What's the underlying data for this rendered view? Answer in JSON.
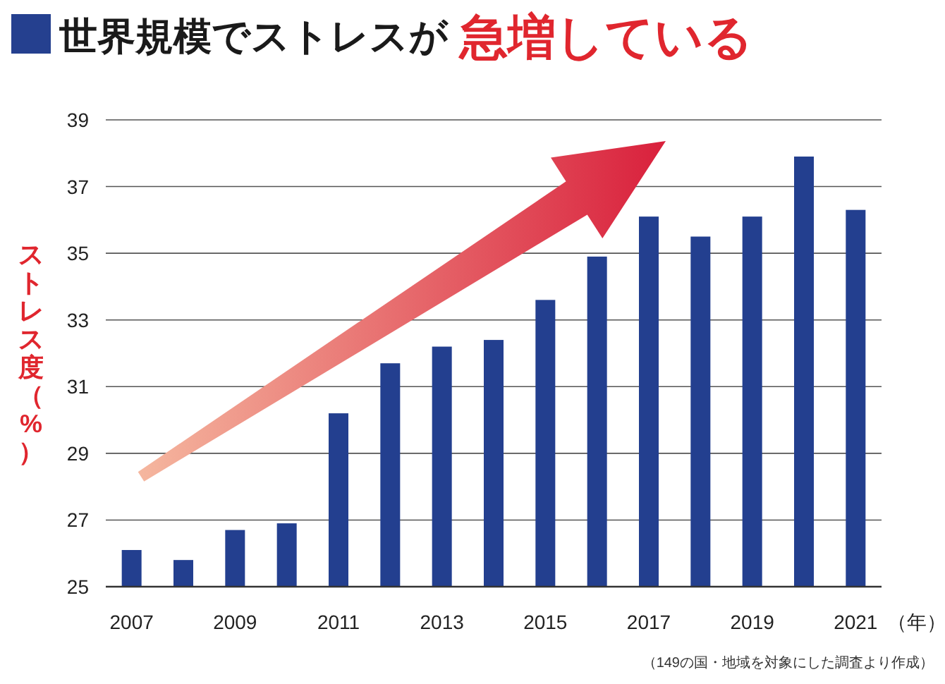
{
  "chart_data": {
    "type": "bar",
    "title": "世界規模でストレスが",
    "subtitle": "急増している",
    "ylabel": "ストレス度（%）",
    "xlabel": "（年）",
    "categories": [
      "2007",
      null,
      "2009",
      null,
      "2011",
      null,
      "2013",
      null,
      "2015",
      null,
      "2017",
      null,
      "2019",
      null,
      "2021"
    ],
    "values": [
      26.1,
      25.8,
      26.7,
      26.9,
      30.2,
      31.7,
      32.2,
      32.4,
      33.6,
      34.9,
      36.1,
      35.5,
      36.1,
      37.9,
      36.3
    ],
    "color": "#233f8f",
    "ylim": [
      25,
      39
    ],
    "yticks": [
      25,
      27,
      29,
      31,
      33,
      35,
      37,
      39
    ],
    "grid": "y",
    "annotations": [
      "（149の国・地域を対象にした調査より作成）"
    ]
  }
}
